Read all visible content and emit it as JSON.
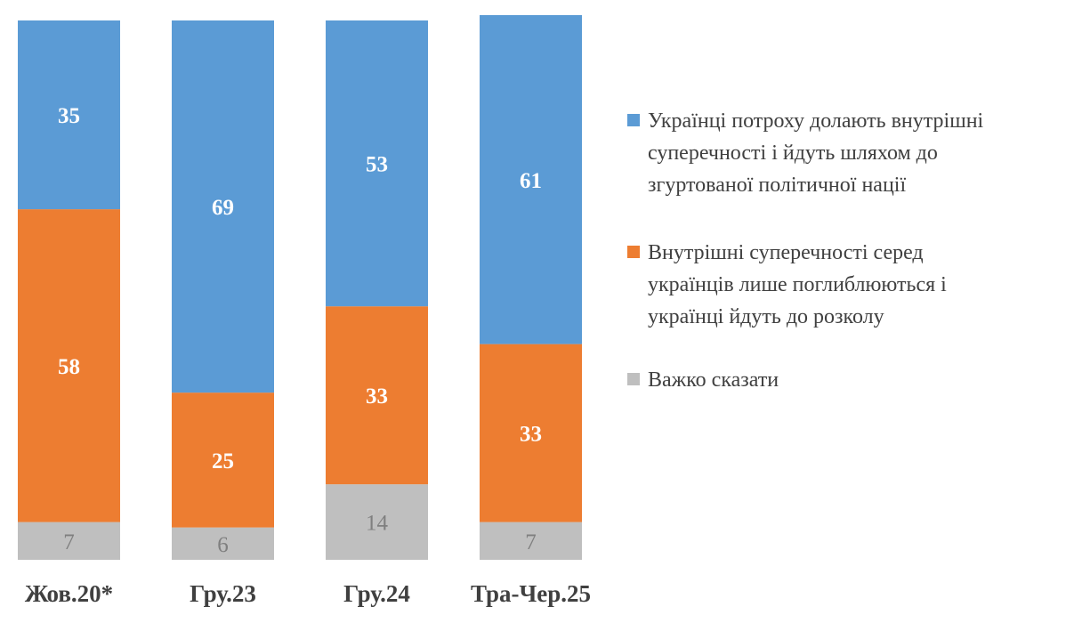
{
  "chart_data": {
    "type": "bar",
    "stacked": true,
    "categories": [
      "Жов.20*",
      "Гру.23",
      "Гру.24",
      "Тра-Чер.25"
    ],
    "series": [
      {
        "name": "Важко сказати",
        "values": [
          7,
          6,
          14,
          7
        ],
        "color": "#bfbfbf",
        "label_color": "#7f7f7f"
      },
      {
        "name": "Внутрішні суперечності серед українців лише поглиблюються і українці йдуть до розколу",
        "values": [
          58,
          25,
          33,
          33
        ],
        "color": "#ed7d31",
        "label_color": "#ffffff"
      },
      {
        "name": "Українці потроху долають внутрішні суперечності і йдуть шляхом до згуртованої політичної нації",
        "values": [
          35,
          69,
          53,
          61
        ],
        "color": "#5b9bd5",
        "label_color": "#ffffff"
      }
    ],
    "ylim": [
      0,
      100
    ],
    "grid": false,
    "legend_placement": "right",
    "legend": [
      {
        "lines": [
          "Українці потроху долають внутрішні",
          "суперечності і йдуть шляхом до",
          "згуртованої політичної нації"
        ],
        "color": "#5b9bd5"
      },
      {
        "lines": [
          "Внутрішні суперечності серед",
          "українців лише поглиблюються і",
          "українці йдуть до розколу"
        ],
        "color": "#ed7d31"
      },
      {
        "lines": [
          "Важко сказати"
        ],
        "color": "#bfbfbf"
      }
    ]
  }
}
